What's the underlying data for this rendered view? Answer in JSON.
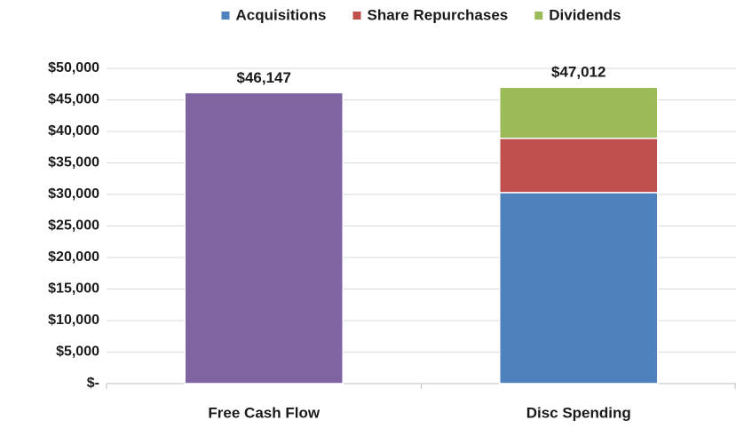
{
  "chart_data": {
    "type": "stacked_bar",
    "categories": [
      "Free Cash Flow",
      "Disc Spending"
    ],
    "series": [
      {
        "color": "#8064a2",
        "values": [
          46147,
          null
        ],
        "value_labels": [
          "$46,147",
          null
        ]
      },
      {
        "name": "Acquisitions",
        "color": "#4f81bd",
        "values": [
          null,
          30300
        ]
      },
      {
        "name": "Share Repurchases",
        "color": "#c0504d",
        "values": [
          null,
          8600
        ]
      },
      {
        "name": "Dividends",
        "color": "#9bbb59",
        "values": [
          null,
          8100
        ]
      }
    ],
    "totals": [
      null,
      47012
    ],
    "total_labels": [
      null,
      "$47,012"
    ],
    "ylim": [
      0,
      50000
    ],
    "yticks": [
      {
        "value": 0,
        "label": "$-"
      },
      {
        "value": 5000,
        "label": "$5,000"
      },
      {
        "value": 10000,
        "label": "$10,000"
      },
      {
        "value": 15000,
        "label": "$15,000"
      },
      {
        "value": 20000,
        "label": "$20,000"
      },
      {
        "value": 25000,
        "label": "$25,000"
      },
      {
        "value": 30000,
        "label": "$30,000"
      },
      {
        "value": 35000,
        "label": "$35,000"
      },
      {
        "value": 40000,
        "label": "$40,000"
      },
      {
        "value": 45000,
        "label": "$45,000"
      },
      {
        "value": 50000,
        "label": "$50,000"
      }
    ],
    "grid": true,
    "legend": "top"
  }
}
